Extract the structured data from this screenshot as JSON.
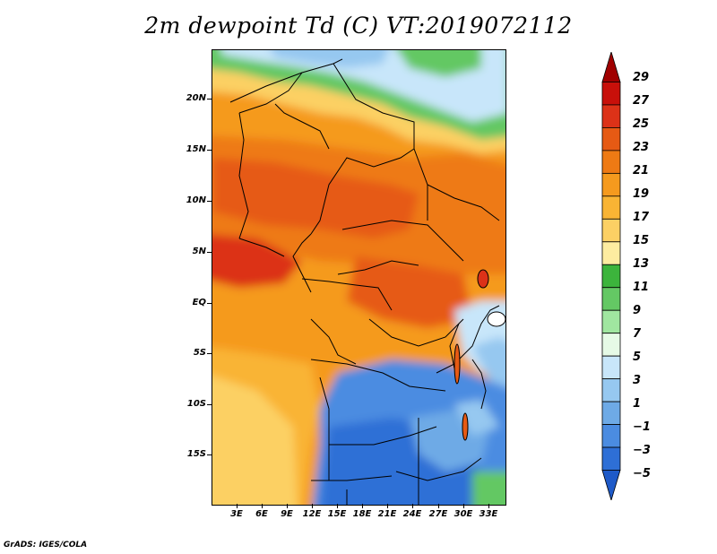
{
  "title": "2m dewpoint Td (C) VT:2019072112",
  "credit": "GrADS: IGES/COLA",
  "y_axis_ticks": [
    "20N",
    "15N",
    "10N",
    "5N",
    "EQ",
    "5S",
    "10S",
    "15S"
  ],
  "x_axis_ticks": [
    "3E",
    "6E",
    "9E",
    "12E",
    "15E",
    "18E",
    "21E",
    "24E",
    "27E",
    "30E",
    "33E"
  ],
  "colorbar": {
    "labels": [
      "29",
      "27",
      "25",
      "23",
      "21",
      "19",
      "17",
      "15",
      "13",
      "11",
      "9",
      "7",
      "5",
      "3",
      "1",
      "−1",
      "−3",
      "−5"
    ],
    "colors_top_to_bottom": [
      "#a00000",
      "#c8100a",
      "#dc3218",
      "#e65a14",
      "#ee7a14",
      "#f59a1e",
      "#f9b434",
      "#fcd064",
      "#fdeca0",
      "#3cb43c",
      "#64c864",
      "#a0e6a0",
      "#e6fae6",
      "#c8e6fa",
      "#96c8f0",
      "#6eaae6",
      "#4b8ce1",
      "#2e6fd6",
      "#1e5ac8"
    ]
  },
  "map": {
    "region_colors": {
      "dry_north": "#64c864",
      "very_dry": "#c8e6fa",
      "humid": "#e65a14",
      "very_humid": "#dc3218",
      "moist": "#f59a1e",
      "semi_arid": "#fcd064",
      "dry_south": "#4b8ce1",
      "driest": "#2e6fd6"
    }
  }
}
